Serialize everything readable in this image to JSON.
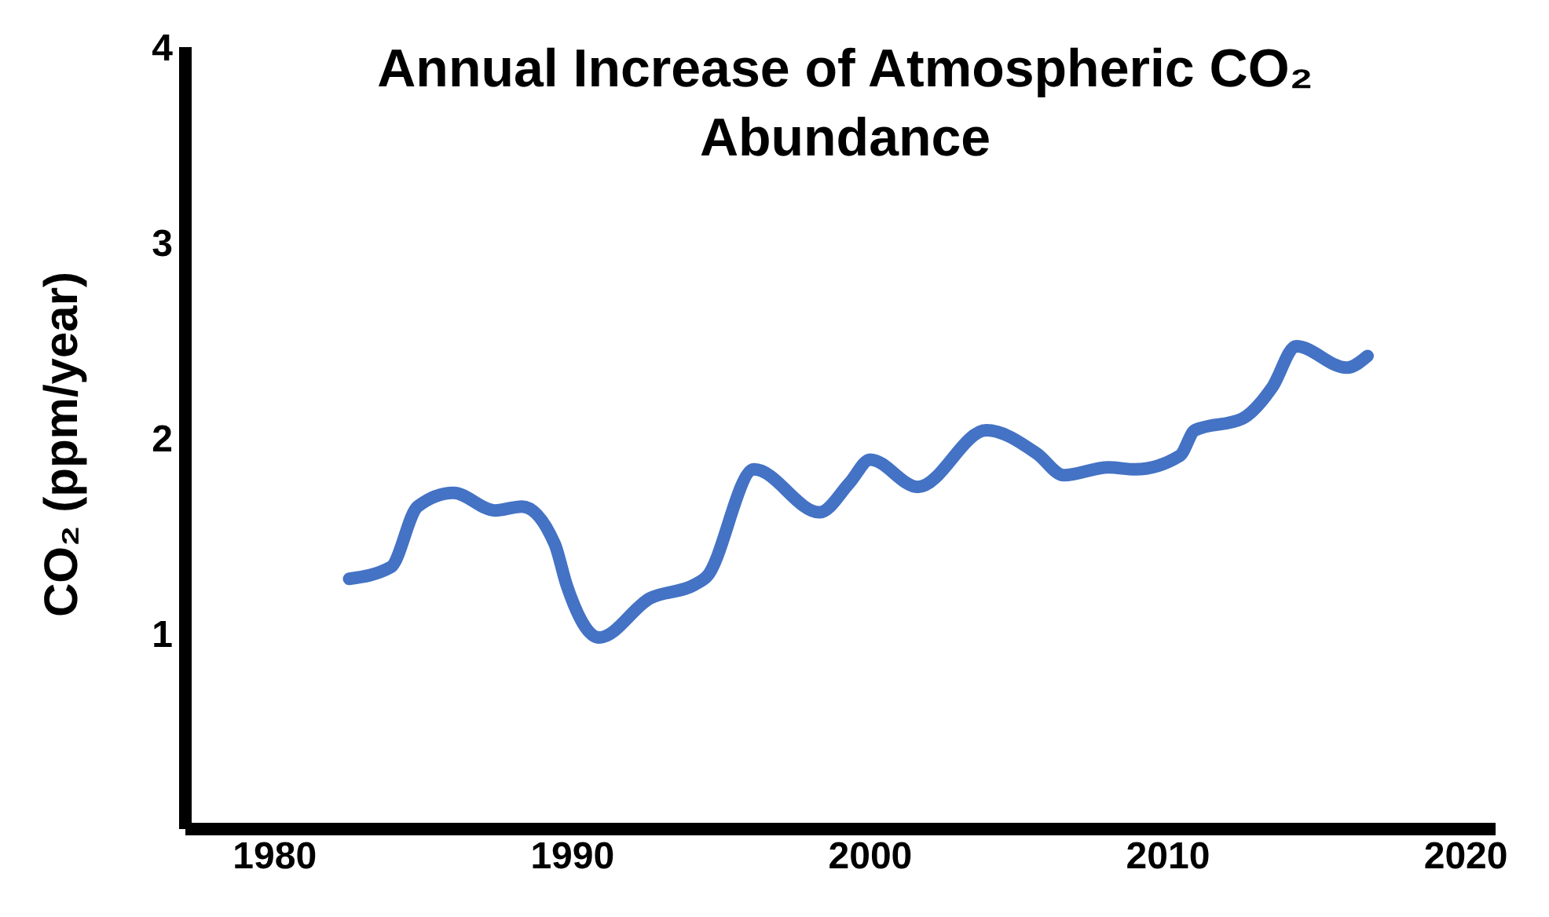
{
  "chart_data": {
    "type": "line",
    "title": "Annual Increase of Atmospheric CO₂ Abundance",
    "ylabel": "CO₂ (ppm/year)",
    "x": [
      1982.5,
      1983.9,
      1984.8,
      1986.0,
      1987.4,
      1988.3,
      1989.4,
      1989.8,
      1990.9,
      1992.6,
      1994.1,
      1994.5,
      1996.1,
      1998.3,
      1999.3,
      2000.0,
      2001.6,
      2003.9,
      2005.6,
      2006.5,
      2008.0,
      2008.9,
      2010.4,
      2010.9,
      2012.5,
      2013.5,
      2014.3,
      2016.0,
      2016.7
    ],
    "series": [
      {
        "color": "#4472c4",
        "values": [
          1.28,
          1.34,
          1.65,
          1.72,
          1.63,
          1.65,
          1.46,
          1.25,
          0.98,
          1.18,
          1.25,
          1.29,
          1.84,
          1.62,
          1.77,
          1.89,
          1.75,
          2.04,
          1.92,
          1.81,
          1.85,
          1.84,
          1.91,
          2.04,
          2.1,
          2.26,
          2.47,
          2.36,
          2.42
        ]
      }
    ],
    "xlim": [
      1977,
      2021
    ],
    "xticks": [
      1980,
      1990,
      2000,
      2010,
      2020
    ],
    "ylim": [
      0,
      4
    ],
    "yticks": [
      1,
      2,
      3,
      4
    ],
    "grid": false,
    "legend": false,
    "marker": "none",
    "line_style": "solid"
  }
}
